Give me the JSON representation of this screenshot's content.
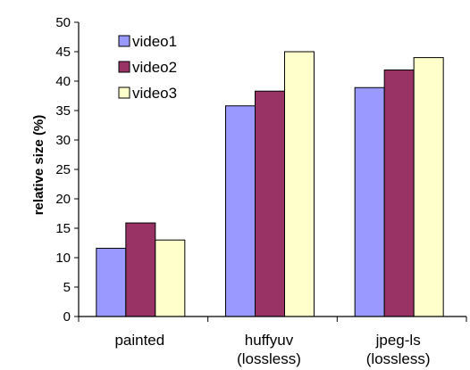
{
  "chart_data": {
    "type": "bar",
    "title": "",
    "xlabel": "",
    "ylabel": "relative size (%)",
    "ylim": [
      0,
      50
    ],
    "yticks": [
      0,
      5,
      10,
      15,
      20,
      25,
      30,
      35,
      40,
      45,
      50
    ],
    "categories": [
      [
        "painted"
      ],
      [
        "huffyuv",
        "(lossless)"
      ],
      [
        "jpeg-ls",
        "(lossless)"
      ]
    ],
    "series": [
      {
        "name": "video1",
        "color": "#9999ff",
        "values": [
          11.6,
          35.8,
          38.9
        ]
      },
      {
        "name": "video2",
        "color": "#993366",
        "values": [
          15.9,
          38.3,
          41.9
        ]
      },
      {
        "name": "video3",
        "color": "#ffffcc",
        "values": [
          13.0,
          45.0,
          44.0
        ]
      }
    ],
    "grid": false,
    "legend": "top-left"
  }
}
